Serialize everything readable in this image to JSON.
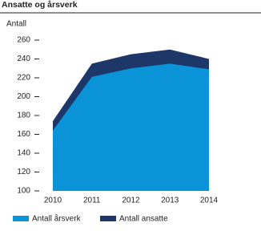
{
  "chart_data": {
    "type": "area",
    "title": "Ansatte og årsverk",
    "y_label": "Antall",
    "categories": [
      "2010",
      "2011",
      "2012",
      "2013",
      "2014"
    ],
    "series": [
      {
        "name": "Antall årsverk",
        "color": "#0a93d6",
        "values": [
          164,
          221,
          230,
          235,
          229
        ]
      },
      {
        "name": "Antall ansatte",
        "color": "#1d3769",
        "values": [
          174,
          235,
          245,
          250,
          240
        ]
      }
    ],
    "ylim": [
      100,
      260
    ],
    "yticks": [
      100,
      120,
      140,
      160,
      180,
      200,
      220,
      240,
      260
    ]
  }
}
